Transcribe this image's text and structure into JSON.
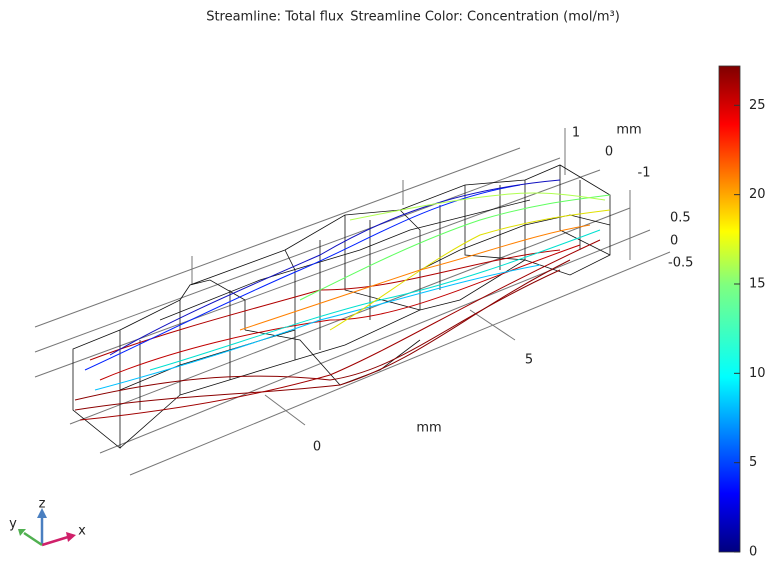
{
  "title_left": "Streamline: Total flux",
  "title_right": "Streamline Color: Concentration (mol/m³)",
  "colorbar": {
    "lim": [
      0,
      27.2
    ],
    "ticks": [
      0,
      5,
      10,
      15,
      20,
      25
    ]
  },
  "axes": {
    "x_ticks": [
      0,
      5
    ],
    "x_unit": "mm",
    "y_ticks": [
      1,
      0,
      -1
    ],
    "y_unit": "mm",
    "z_ticks": [
      0.5,
      0,
      -0.5
    ]
  },
  "triad": {
    "x": "x",
    "y": "y",
    "z": "z"
  }
}
